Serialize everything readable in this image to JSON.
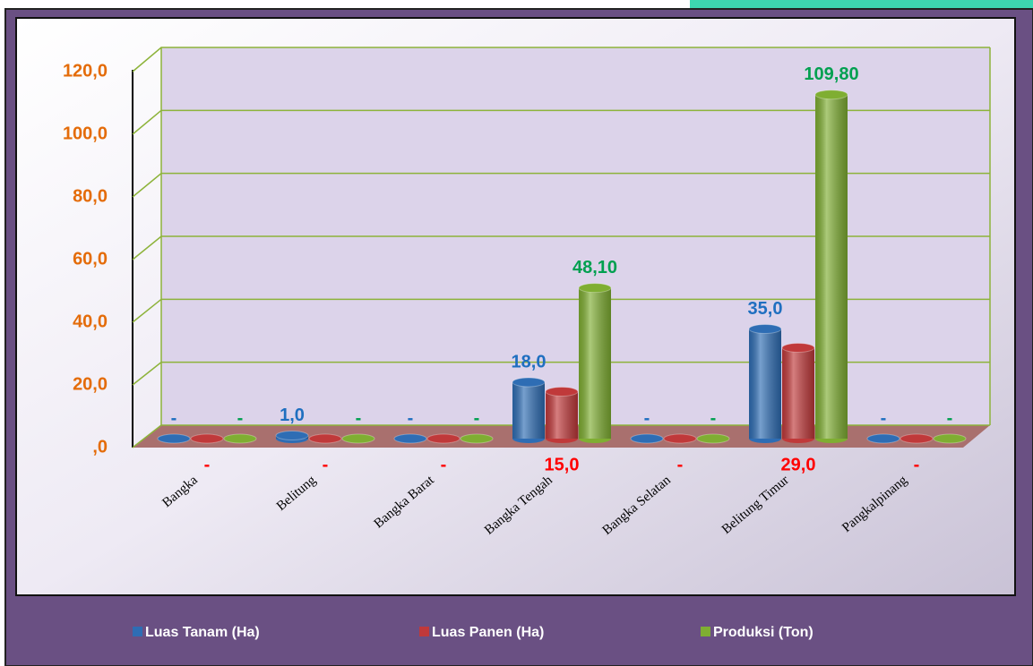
{
  "chart_data": {
    "type": "bar",
    "categories": [
      "Bangka",
      "Belitung",
      "Bangka Barat",
      "Bangka Tengah",
      "Bangka Selatan",
      "Belitung Timur",
      "Pangkalpinang"
    ],
    "series": [
      {
        "name": "Luas Tanam (Ha)",
        "color": "#2e6db4",
        "values": [
          0,
          1,
          0,
          18,
          0,
          35,
          0
        ],
        "value_labels": [
          "-",
          "1,0",
          "-",
          "18,0",
          "-",
          "35,0",
          "-"
        ]
      },
      {
        "name": "Luas Panen (Ha)",
        "color": "#c0393a",
        "values": [
          0,
          0,
          0,
          15,
          0,
          29,
          0
        ],
        "value_labels": [
          "-",
          "-",
          "-",
          "15,0",
          "-",
          "29,0",
          "-"
        ]
      },
      {
        "name": "Produksi (Ton)",
        "color": "#7fae32",
        "values": [
          0,
          0,
          0,
          48.1,
          0,
          109.8,
          0
        ],
        "value_labels": [
          "-",
          "-",
          "-",
          "48,10",
          "-",
          "109,80",
          "-"
        ]
      }
    ],
    "label_colors": [
      "#1f6fc0",
      "#ff0000",
      "#00a050"
    ],
    "ylim": [
      0,
      120
    ],
    "yticks": [
      {
        "value": 0,
        "label": ",0"
      },
      {
        "value": 20,
        "label": "20,0"
      },
      {
        "value": 40,
        "label": "40,0"
      },
      {
        "value": 60,
        "label": "60,0"
      },
      {
        "value": 80,
        "label": "80,0"
      },
      {
        "value": 100,
        "label": "100,0"
      },
      {
        "value": 120,
        "label": "120,0"
      }
    ],
    "grid": true
  }
}
